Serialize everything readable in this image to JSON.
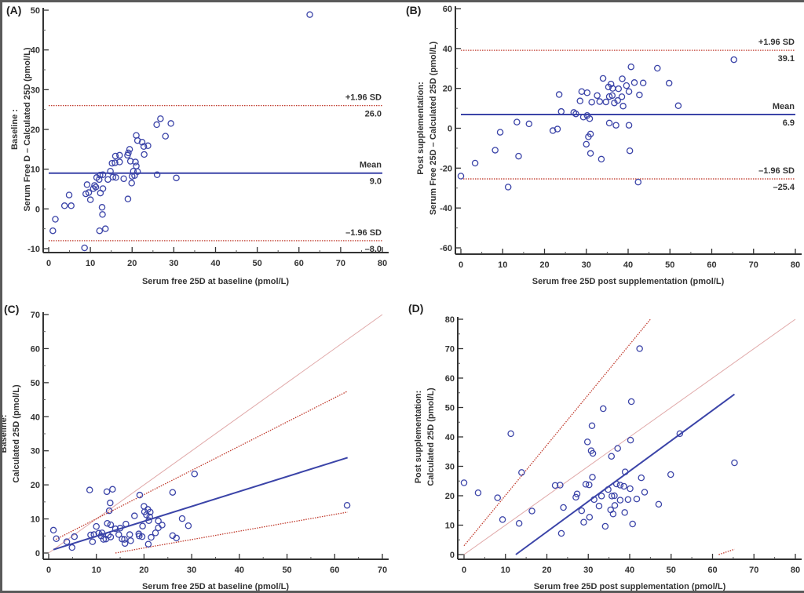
{
  "chart_data": [
    {
      "id": "A",
      "type": "scatter",
      "panel_label": "(A)",
      "title": "",
      "xlabel": "Serum free 25D at baseline (pmol/L)",
      "ylabel_lines": [
        "Baseline :",
        "Serum Free D – Calculated 25D (pmol/L)"
      ],
      "xlim": [
        0,
        80
      ],
      "ylim": [
        -10,
        50
      ],
      "xticks": [
        0,
        10,
        20,
        30,
        40,
        50,
        60,
        70,
        80
      ],
      "yticks": [
        -10,
        0,
        10,
        20,
        30,
        40,
        50
      ],
      "grid": false,
      "hlines": [
        {
          "name": "upper-loa",
          "y": 26.0,
          "style": "dotted",
          "color": "#c0392b",
          "label_top": "+1.96 SD",
          "label_bottom": "26.0"
        },
        {
          "name": "mean",
          "y": 9.0,
          "style": "solid",
          "color": "#3b44a8",
          "label_top": "Mean",
          "label_bottom": "9.0"
        },
        {
          "name": "lower-loa",
          "y": -8.0,
          "style": "dotted",
          "color": "#c0392b",
          "label_top": "–1.96 SD",
          "label_bottom": "–8.0"
        }
      ],
      "points": [
        [
          1,
          -5.5
        ],
        [
          1.6,
          -2.6
        ],
        [
          3.8,
          0.8
        ],
        [
          4.9,
          3.5
        ],
        [
          5.4,
          0.8
        ],
        [
          8.6,
          -9.8
        ],
        [
          8.9,
          3.8
        ],
        [
          9.2,
          6.1
        ],
        [
          9.6,
          4.1
        ],
        [
          10,
          2.3
        ],
        [
          10.7,
          5.1
        ],
        [
          11,
          5.9
        ],
        [
          11.3,
          5.5
        ],
        [
          11.5,
          7.9
        ],
        [
          12.1,
          7.4
        ],
        [
          12.3,
          8.5
        ],
        [
          12.2,
          -5.5
        ],
        [
          12.4,
          4
        ],
        [
          12.8,
          0.4
        ],
        [
          12.9,
          -1.4
        ],
        [
          13,
          8.6
        ],
        [
          13,
          5.1
        ],
        [
          13.6,
          -5
        ],
        [
          14.2,
          7.4
        ],
        [
          14.8,
          9.5
        ],
        [
          15.2,
          11.5
        ],
        [
          15.4,
          8
        ],
        [
          15.9,
          11.6
        ],
        [
          16,
          13.3
        ],
        [
          16.1,
          7.9
        ],
        [
          17,
          13.5
        ],
        [
          17,
          11.8
        ],
        [
          18,
          7.6
        ],
        [
          18.9,
          13.5
        ],
        [
          19.1,
          14.1
        ],
        [
          19,
          2.5
        ],
        [
          19.4,
          15
        ],
        [
          19.6,
          12
        ],
        [
          19.9,
          6.5
        ],
        [
          20,
          8.2
        ],
        [
          20.3,
          9.5
        ],
        [
          20.6,
          8.4
        ],
        [
          20.8,
          11.8
        ],
        [
          21,
          18.5
        ],
        [
          21,
          10.8
        ],
        [
          21.3,
          9.4
        ],
        [
          21.3,
          17.2
        ],
        [
          22.4,
          16.8
        ],
        [
          22.8,
          15.7
        ],
        [
          22.9,
          13.7
        ],
        [
          23.8,
          15.9
        ],
        [
          25.9,
          21.2
        ],
        [
          26,
          8.6
        ],
        [
          26.8,
          22.7
        ],
        [
          28,
          18.3
        ],
        [
          29.3,
          21.5
        ],
        [
          30.6,
          7.8
        ],
        [
          62.6,
          48.9
        ]
      ]
    },
    {
      "id": "B",
      "type": "scatter",
      "panel_label": "(B)",
      "title": "",
      "xlabel": "Serum free 25D post supplementation (pmol/L)",
      "ylabel_lines": [
        "Post supplementation:",
        "Serum Free 25D – Calculated 25D (pmol/L)"
      ],
      "xlim": [
        0,
        80
      ],
      "ylim": [
        -60,
        60
      ],
      "xticks": [
        0,
        10,
        20,
        30,
        40,
        50,
        60,
        70,
        80
      ],
      "yticks": [
        -60,
        -40,
        -20,
        0,
        20,
        40,
        60
      ],
      "grid": false,
      "hlines": [
        {
          "name": "upper-loa",
          "y": 39.1,
          "style": "dotted",
          "color": "#c0392b",
          "label_top": "+1.96 SD",
          "label_bottom": "39.1"
        },
        {
          "name": "mean",
          "y": 6.9,
          "style": "solid",
          "color": "#3b44a8",
          "label_top": "Mean",
          "label_bottom": "6.9"
        },
        {
          "name": "lower-loa",
          "y": -25.4,
          "style": "dotted",
          "color": "#c0392b",
          "label_top": "–1.96 SD",
          "label_bottom": "–25.4"
        }
      ],
      "points": [
        [
          0,
          -24
        ],
        [
          3.4,
          -17.5
        ],
        [
          8.2,
          -11
        ],
        [
          9.4,
          -2
        ],
        [
          11.3,
          -29.5
        ],
        [
          13.4,
          3.1
        ],
        [
          13.8,
          -14
        ],
        [
          16.3,
          2.2
        ],
        [
          22,
          -1.2
        ],
        [
          23.1,
          -0.4
        ],
        [
          23.5,
          16.9
        ],
        [
          24,
          8.4
        ],
        [
          27,
          7.9
        ],
        [
          27.5,
          7.2
        ],
        [
          28.5,
          13.7
        ],
        [
          28.9,
          18.4
        ],
        [
          29.3,
          5.6
        ],
        [
          30.2,
          6.4
        ],
        [
          30.2,
          17.8
        ],
        [
          30.5,
          -4.3
        ],
        [
          30.8,
          4.8
        ],
        [
          31,
          -2.9
        ],
        [
          31,
          -12.6
        ],
        [
          31.3,
          13.1
        ],
        [
          30,
          -8
        ],
        [
          32.6,
          16.4
        ],
        [
          33.2,
          13.4
        ],
        [
          33.6,
          -15.5
        ],
        [
          34,
          25
        ],
        [
          34.7,
          13.2
        ],
        [
          35.3,
          20.7
        ],
        [
          35.5,
          15.9
        ],
        [
          35.5,
          2.6
        ],
        [
          35.9,
          22.2
        ],
        [
          36.2,
          16.4
        ],
        [
          36.3,
          20
        ],
        [
          36.7,
          12.7
        ],
        [
          37.1,
          1.5
        ],
        [
          37.5,
          13.9
        ],
        [
          37.7,
          19.8
        ],
        [
          38.5,
          15.8
        ],
        [
          38.6,
          24.8
        ],
        [
          38.8,
          11.1
        ],
        [
          39.6,
          21.4
        ],
        [
          40.2,
          18.4
        ],
        [
          40.2,
          1.5
        ],
        [
          40.4,
          -11.3
        ],
        [
          40.7,
          30.8
        ],
        [
          41.5,
          22.9
        ],
        [
          42.4,
          -27
        ],
        [
          42.7,
          16.7
        ],
        [
          43.6,
          22.7
        ],
        [
          47,
          30.1
        ],
        [
          49.8,
          22.6
        ],
        [
          52,
          11.3
        ],
        [
          65.3,
          34.4
        ]
      ]
    },
    {
      "id": "C",
      "type": "scatter",
      "panel_label": "(C)",
      "title": "",
      "xlabel": "Serum free 25D at baseline (pmol/L)",
      "ylabel_lines": [
        "Baseline:",
        "Calculated 25D (pmol/L)"
      ],
      "xlim": [
        0,
        70
      ],
      "ylim": [
        0,
        70
      ],
      "xticks": [
        0,
        10,
        20,
        30,
        40,
        50,
        60,
        70
      ],
      "yticks": [
        0,
        10,
        20,
        30,
        40,
        50,
        60,
        70
      ],
      "grid": false,
      "lines": [
        {
          "name": "identity-line",
          "from": [
            0,
            0
          ],
          "to": [
            70,
            70
          ],
          "style": "solid-thin",
          "color": "#e0a8a8"
        },
        {
          "name": "upper-ci-line",
          "from": [
            1.5,
            4
          ],
          "to": [
            62.7,
            47.5
          ],
          "style": "dotted",
          "color": "#c0392b"
        },
        {
          "name": "regression-line",
          "from": [
            1,
            1
          ],
          "to": [
            62.7,
            28
          ],
          "style": "solid",
          "color": "#3b44a8"
        },
        {
          "name": "lower-ci-line",
          "from": [
            14,
            0
          ],
          "to": [
            62.7,
            12
          ],
          "style": "dotted",
          "color": "#c0392b"
        }
      ],
      "points": [
        [
          1,
          6.7
        ],
        [
          1.6,
          4.2
        ],
        [
          3.8,
          3.3
        ],
        [
          4.9,
          1.6
        ],
        [
          5.4,
          4.8
        ],
        [
          8.6,
          18.5
        ],
        [
          8.8,
          5.3
        ],
        [
          9.2,
          3.3
        ],
        [
          9.5,
          5.4
        ],
        [
          10,
          7.8
        ],
        [
          10.5,
          5.8
        ],
        [
          11,
          5
        ],
        [
          11.2,
          5.9
        ],
        [
          11.5,
          4
        ],
        [
          12,
          4.1
        ],
        [
          12.2,
          18
        ],
        [
          12.3,
          8.7
        ],
        [
          12.5,
          5.2
        ],
        [
          12.7,
          12.4
        ],
        [
          12.9,
          14.7
        ],
        [
          13,
          8.3
        ],
        [
          13,
          4.7
        ],
        [
          13.4,
          18.7
        ],
        [
          14,
          7.1
        ],
        [
          14.7,
          5.4
        ],
        [
          15,
          7.3
        ],
        [
          15.4,
          4.1
        ],
        [
          15.9,
          4
        ],
        [
          16,
          2.8
        ],
        [
          16.2,
          8.5
        ],
        [
          17,
          5.4
        ],
        [
          17.2,
          3.6
        ],
        [
          18,
          10.9
        ],
        [
          18.9,
          5.6
        ],
        [
          19,
          5
        ],
        [
          19.1,
          17
        ],
        [
          19.6,
          4.8
        ],
        [
          19.7,
          7.9
        ],
        [
          20,
          13.7
        ],
        [
          20.1,
          12.1
        ],
        [
          20.5,
          11.2
        ],
        [
          20.8,
          12.8
        ],
        [
          20.9,
          2.6
        ],
        [
          21,
          9.5
        ],
        [
          21.2,
          10.6
        ],
        [
          21.3,
          12
        ],
        [
          21.5,
          4.6
        ],
        [
          22.4,
          5.9
        ],
        [
          23,
          7.4
        ],
        [
          23,
          9.4
        ],
        [
          23.8,
          8.2
        ],
        [
          26,
          17.8
        ],
        [
          26,
          5.1
        ],
        [
          26.8,
          4.4
        ],
        [
          28,
          10.1
        ],
        [
          29.3,
          8
        ],
        [
          30.6,
          23.2
        ],
        [
          62.6,
          14
        ]
      ]
    },
    {
      "id": "D",
      "type": "scatter",
      "panel_label": "(D)",
      "title": "",
      "xlabel": "Serum free 25D post supplementation (pmol/L)",
      "ylabel_lines": [
        "Post supplementation:",
        "Calculated 25D (pmol/L)"
      ],
      "xlim": [
        0,
        80
      ],
      "ylim": [
        0,
        80
      ],
      "xticks": [
        0,
        10,
        20,
        30,
        40,
        50,
        60,
        70,
        80
      ],
      "yticks": [
        0,
        10,
        20,
        30,
        40,
        50,
        60,
        70,
        80
      ],
      "grid": false,
      "lines": [
        {
          "name": "identity-line",
          "from": [
            0,
            0
          ],
          "to": [
            80,
            80
          ],
          "style": "solid-thin",
          "color": "#e0a8a8"
        },
        {
          "name": "upper-ci-line",
          "from": [
            0,
            3
          ],
          "to": [
            45,
            80
          ],
          "style": "dotted",
          "color": "#c0392b"
        },
        {
          "name": "regression-line",
          "from": [
            12.5,
            0
          ],
          "to": [
            65.3,
            54.5
          ],
          "style": "solid",
          "color": "#3b44a8"
        },
        {
          "name": "lower-ci-line",
          "from": [
            61.5,
            0
          ],
          "to": [
            65.3,
            1.8
          ],
          "style": "dotted",
          "color": "#c0392b"
        }
      ],
      "points": [
        [
          0,
          24.4
        ],
        [
          3.4,
          21
        ],
        [
          8.1,
          19.3
        ],
        [
          9.3,
          11.9
        ],
        [
          11.3,
          41.1
        ],
        [
          13.3,
          10.6
        ],
        [
          13.9,
          27.9
        ],
        [
          16.4,
          14.8
        ],
        [
          22,
          23.5
        ],
        [
          23.2,
          23.6
        ],
        [
          23.5,
          7.2
        ],
        [
          24,
          16
        ],
        [
          27,
          19.5
        ],
        [
          27.3,
          20.6
        ],
        [
          28.4,
          14.9
        ],
        [
          28.9,
          11
        ],
        [
          29.4,
          23.9
        ],
        [
          29.8,
          38.3
        ],
        [
          30.2,
          23.7
        ],
        [
          30.3,
          12.7
        ],
        [
          30.7,
          35.3
        ],
        [
          30.9,
          43.8
        ],
        [
          31,
          26.3
        ],
        [
          31.1,
          34.4
        ],
        [
          31.4,
          18.7
        ],
        [
          32.6,
          16.5
        ],
        [
          33.2,
          19.9
        ],
        [
          33.6,
          49.6
        ],
        [
          34.1,
          9.6
        ],
        [
          34.8,
          22.1
        ],
        [
          35.4,
          15.2
        ],
        [
          35.6,
          33.4
        ],
        [
          35.7,
          19.9
        ],
        [
          36,
          13.8
        ],
        [
          36.3,
          20
        ],
        [
          36.4,
          16.7
        ],
        [
          36.8,
          24
        ],
        [
          37.1,
          36.1
        ],
        [
          37.7,
          23.6
        ],
        [
          37.7,
          18.5
        ],
        [
          38.6,
          23.2
        ],
        [
          38.8,
          14.3
        ],
        [
          38.9,
          28.1
        ],
        [
          39.6,
          18.7
        ],
        [
          40.1,
          22.4
        ],
        [
          40.2,
          38.9
        ],
        [
          40.4,
          52
        ],
        [
          40.7,
          10.4
        ],
        [
          41.7,
          18.9
        ],
        [
          42.4,
          70
        ],
        [
          42.8,
          26.1
        ],
        [
          43.6,
          21.2
        ],
        [
          47,
          17.1
        ],
        [
          49.9,
          27.2
        ],
        [
          52.1,
          41.1
        ],
        [
          65.3,
          31.2
        ]
      ]
    }
  ]
}
